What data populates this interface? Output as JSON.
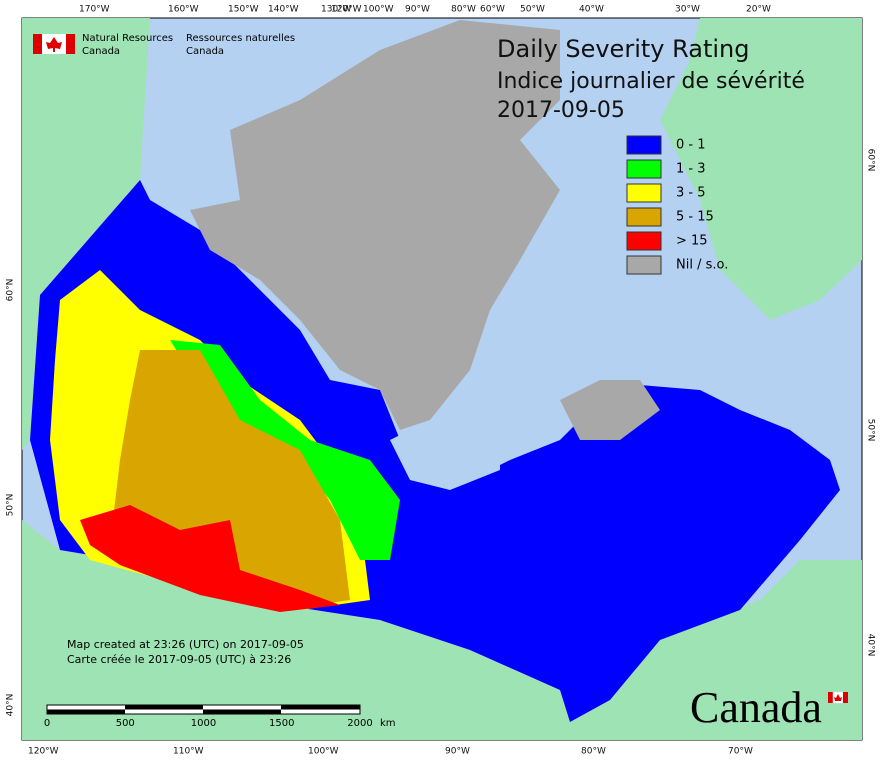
{
  "header": {
    "org_en": [
      "Natural Resources",
      "Canada"
    ],
    "org_fr": [
      "Ressources naturelles",
      "Canada"
    ]
  },
  "title": {
    "en": "Daily Severity Rating",
    "fr": "Indice journalier de sévérité",
    "date": "2017-09-05"
  },
  "legend": [
    {
      "label": "0 - 1",
      "color": "#0000ff"
    },
    {
      "label": "1 - 3",
      "color": "#00ff00"
    },
    {
      "label": "3 - 5",
      "color": "#ffff00"
    },
    {
      "label": "5 - 15",
      "color": "#d9a500"
    },
    {
      "label": "> 15",
      "color": "#ff0000"
    },
    {
      "label": "Nil / s.o.",
      "color": "#a8a8a8"
    }
  ],
  "graticule": {
    "top": [
      "170°W",
      "160°W",
      "150°W",
      "140°W",
      "130°W",
      "120°W",
      "100°W",
      "90°W",
      "80°W",
      "60°W",
      "50°W",
      "40°W",
      "30°W",
      "20°W"
    ],
    "bottom": [
      "120°W",
      "110°W",
      "100°W",
      "90°W",
      "80°W",
      "70°W"
    ],
    "left": [
      "60°N",
      "50°N",
      "40°N"
    ],
    "right": [
      "60°N",
      "50°N",
      "40°N"
    ]
  },
  "notes": [
    "Map created at 23:26 (UTC) on 2017-09-05",
    "Carte créée le 2017-09-05 (UTC) à 23:26"
  ],
  "scale_bar": {
    "ticks": [
      "0",
      "500",
      "1000",
      "1500",
      "2000"
    ],
    "unit": "km"
  },
  "wordmark": "Canada"
}
